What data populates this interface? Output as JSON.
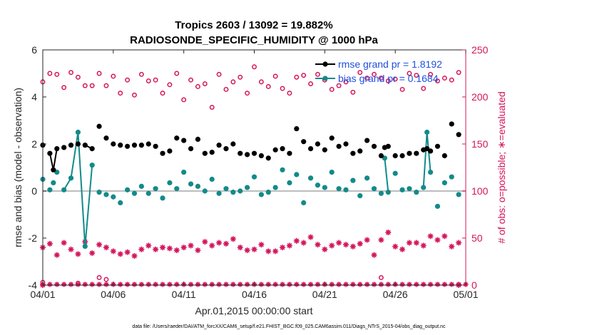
{
  "chart_data": {
    "type": "scatter",
    "title_line1": "Tropics 2603 / 13092 = 19.882%",
    "title_line2": "RADIOSONDE_SPECIFIC_HUMIDITY @ 1000 hPa",
    "xlabel": "Apr.01,2015 00:00:00 start",
    "ylabel_left": "rmse and bias (model - observation)",
    "ylabel_right": "# of obs: o=possible; ∗=evaluated",
    "footer": "data file: /Users/raeder/DAI/ATM_forcXX/CAM6_setup/f.e21.FHIST_BGC.f09_025.CAM6assim.011/Diags_NTrS_2015-04/obs_diag_output.nc",
    "xlim": [
      0,
      30
    ],
    "ylim_left": [
      -4,
      6
    ],
    "ylim_right": [
      0,
      250
    ],
    "x_ticks": [
      0,
      5,
      10,
      15,
      20,
      25,
      30
    ],
    "x_tick_labels": [
      "04/01",
      "04/06",
      "04/11",
      "04/16",
      "04/21",
      "04/26",
      "05/01"
    ],
    "y_ticks_left": [
      "-4",
      "-2",
      "0",
      "2",
      "4",
      "6"
    ],
    "y_ticks_right": [
      "0",
      "50",
      "100",
      "150",
      "200",
      "250"
    ],
    "legend": [
      {
        "name": "rmse grand pr = 1.8192",
        "color": "#000000"
      },
      {
        "name": "bias grand pr = 0.1684",
        "color": "#138a8a"
      }
    ],
    "colors": {
      "rmse": "#000000",
      "bias": "#138a8a",
      "obs": "#d4145a",
      "zero_line": "#bdbdbd"
    },
    "series": [
      {
        "name": "rmse",
        "axis": "left",
        "x": [
          0,
          0.5,
          0.75,
          1,
          1.5,
          2,
          2.5,
          3,
          3.5,
          4,
          4.5,
          5,
          5.5,
          6,
          6.5,
          7,
          7.5,
          8,
          8.5,
          9,
          9.5,
          10,
          10.5,
          11,
          11.5,
          12,
          12.5,
          13,
          13.5,
          14,
          14.5,
          15,
          15.5,
          16,
          16.5,
          17,
          17.5,
          18,
          18.5,
          19,
          19.5,
          20,
          20.5,
          21,
          21.5,
          22,
          22.5,
          23,
          23.5,
          24,
          24.25,
          24.5,
          25,
          25.5,
          26,
          26.5,
          27,
          27.25,
          27.5,
          28,
          28.5,
          29,
          29.5
        ],
        "values": [
          1.95,
          1.6,
          0.9,
          1.8,
          1.85,
          1.95,
          2.0,
          1.95,
          1.8,
          2.75,
          2.25,
          2.0,
          1.95,
          1.9,
          1.95,
          1.95,
          2.0,
          1.9,
          1.6,
          1.7,
          2.25,
          2.15,
          1.8,
          2.2,
          1.6,
          1.65,
          1.95,
          1.8,
          2.0,
          1.6,
          1.55,
          1.6,
          1.5,
          1.4,
          1.75,
          1.8,
          1.6,
          2.65,
          2.1,
          1.8,
          2.0,
          1.75,
          2.25,
          1.9,
          2.0,
          1.6,
          1.7,
          2.15,
          1.9,
          1.5,
          1.85,
          1.9,
          1.5,
          1.5,
          1.6,
          1.6,
          1.75,
          1.8,
          1.7,
          1.9,
          1.5,
          2.85,
          2.4
        ],
        "connected_runs": [
          [
            0.5,
            0.75,
            1
          ],
          [
            3,
            3.5
          ],
          [
            27.25,
            27.5
          ]
        ]
      },
      {
        "name": "bias",
        "axis": "left",
        "x": [
          0,
          0.5,
          0.75,
          1,
          1.5,
          2,
          2.5,
          3,
          3.5,
          4,
          4.5,
          5,
          5.5,
          6,
          6.5,
          7,
          7.5,
          8,
          8.5,
          9,
          9.5,
          10,
          10.5,
          11,
          11.5,
          12,
          12.5,
          13,
          13.5,
          14,
          14.5,
          15,
          15.5,
          16,
          16.5,
          17,
          17.5,
          18,
          18.5,
          19,
          19.5,
          20,
          20.5,
          21,
          21.5,
          22,
          22.5,
          23,
          23.5,
          24,
          24.25,
          24.5,
          25,
          25.5,
          26,
          26.5,
          27,
          27.25,
          27.5,
          28,
          28.5,
          29,
          29.5
        ],
        "values": [
          0.5,
          0.05,
          0.35,
          0.8,
          0.05,
          0.55,
          2.5,
          -2.35,
          1.1,
          -0.05,
          -0.15,
          -0.25,
          -0.5,
          0.05,
          -0.1,
          0.2,
          -0.1,
          0.1,
          -0.3,
          0.35,
          0.1,
          0.8,
          0.3,
          0.2,
          0.0,
          0.5,
          -0.1,
          0.1,
          -0.05,
          0.0,
          0.15,
          0.6,
          -0.15,
          -0.05,
          0.15,
          0.9,
          0.35,
          0.7,
          -0.5,
          0.55,
          0.25,
          0.15,
          0.8,
          0.1,
          0.05,
          0.45,
          -0.2,
          0.55,
          0.1,
          -0.1,
          1.4,
          -0.05,
          0.75,
          0.05,
          0.1,
          -0.05,
          0.15,
          2.5,
          0.8,
          -0.65,
          0.35,
          0.6,
          -0.15
        ],
        "connected_runs": [
          [
            1.5,
            2,
            2.5,
            3,
            3.5
          ],
          [
            23.75,
            24.25,
            24.5
          ],
          [
            27,
            27.25,
            27.5
          ]
        ]
      },
      {
        "name": "obs possible",
        "axis": "right",
        "x": [
          0,
          0.5,
          1,
          1.5,
          2,
          2.5,
          3,
          3.5,
          4,
          4.5,
          5,
          5.5,
          6,
          6.5,
          7,
          7.5,
          8,
          8.5,
          9,
          9.5,
          10,
          10.5,
          11,
          11.5,
          12,
          12.5,
          13,
          13.5,
          14,
          14.5,
          15,
          15.5,
          16,
          16.5,
          17,
          17.5,
          18,
          18.5,
          19,
          19.5,
          20,
          20.5,
          21,
          21.5,
          22,
          22.5,
          23,
          23.5,
          24,
          24.5,
          25,
          25.5,
          26,
          26.5,
          27,
          27.5,
          28,
          28.5,
          29,
          29.5
        ],
        "values": [
          216,
          225,
          224,
          210,
          226,
          221,
          212,
          212,
          225,
          212,
          222,
          204,
          218,
          202,
          224,
          217,
          218,
          204,
          213,
          225,
          197,
          218,
          211,
          214,
          189,
          224,
          208,
          216,
          221,
          204,
          232,
          216,
          211,
          222,
          209,
          204,
          221,
          223,
          214,
          224,
          218,
          208,
          212,
          216,
          205,
          226,
          220,
          224,
          220,
          217,
          219,
          208,
          225,
          223,
          209,
          224,
          217,
          220,
          218,
          226
        ],
        "extra_points": [
          {
            "x": 0,
            "y": 3
          },
          {
            "x": 2.5,
            "y": 2
          },
          {
            "x": 4,
            "y": 8
          },
          {
            "x": 4.5,
            "y": 6
          },
          {
            "x": 24,
            "y": 8
          }
        ]
      },
      {
        "name": "obs evaluated",
        "axis": "right",
        "x": [
          0,
          0.5,
          1,
          1.5,
          2,
          2.5,
          3,
          3.5,
          4,
          4.5,
          5,
          5.5,
          6,
          6.5,
          7,
          7.5,
          8,
          8.5,
          9,
          9.5,
          10,
          10.5,
          11,
          11.5,
          12,
          12.5,
          13,
          13.5,
          14,
          14.5,
          15,
          15.5,
          16,
          16.5,
          17,
          17.5,
          18,
          18.5,
          19,
          19.5,
          20,
          20.5,
          21,
          21.5,
          22,
          22.5,
          23,
          23.5,
          24,
          24.5,
          25,
          25.5,
          26,
          26.5,
          27,
          27.5,
          28,
          28.5,
          29,
          29.5
        ],
        "values": [
          40,
          44,
          32,
          45,
          38,
          33,
          46,
          34,
          43,
          40,
          36,
          33,
          35,
          31,
          38,
          42,
          38,
          40,
          39,
          37,
          40,
          42,
          37,
          46,
          42,
          45,
          44,
          49,
          40,
          37,
          38,
          43,
          36,
          36,
          40,
          42,
          47,
          45,
          51,
          43,
          38,
          42,
          45,
          43,
          41,
          44,
          48,
          32,
          48,
          56,
          41,
          38,
          45,
          45,
          42,
          52,
          48,
          52,
          41,
          45
        ],
        "extra_points": [
          {
            "x": 0,
            "y": 0
          },
          {
            "x": 29.5,
            "y": 0
          }
        ]
      }
    ],
    "zero_count_row": {
      "axis": "right",
      "value": 0
    }
  }
}
